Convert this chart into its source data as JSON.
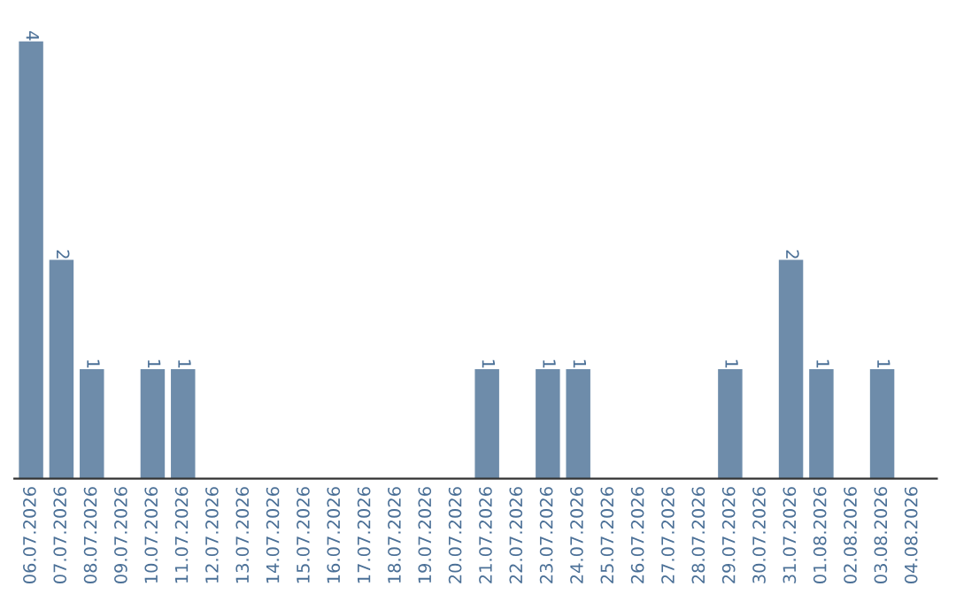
{
  "chart_data": {
    "type": "bar",
    "categories": [
      "06.07.2026",
      "07.07.2026",
      "08.07.2026",
      "09.07.2026",
      "10.07.2026",
      "11.07.2026",
      "12.07.2026",
      "13.07.2026",
      "14.07.2026",
      "15.07.2026",
      "16.07.2026",
      "17.07.2026",
      "18.07.2026",
      "19.07.2026",
      "20.07.2026",
      "21.07.2026",
      "22.07.2026",
      "23.07.2026",
      "24.07.2026",
      "25.07.2026",
      "26.07.2026",
      "27.07.2026",
      "28.07.2026",
      "29.07.2026",
      "30.07.2026",
      "31.07.2026",
      "01.08.2026",
      "02.08.2026",
      "03.08.2026",
      "04.08.2026"
    ],
    "values": [
      4,
      2,
      1,
      0,
      1,
      1,
      0,
      0,
      0,
      0,
      0,
      0,
      0,
      0,
      0,
      1,
      0,
      1,
      1,
      0,
      0,
      0,
      0,
      1,
      0,
      2,
      1,
      0,
      1,
      0
    ],
    "value_labels": [
      "4",
      "2",
      "1",
      null,
      "1",
      "1",
      null,
      null,
      null,
      null,
      null,
      null,
      null,
      null,
      null,
      "1",
      null,
      "1",
      "1",
      null,
      null,
      null,
      null,
      "1",
      null,
      "2",
      "1",
      null,
      "1",
      null
    ],
    "color": "#6e8caa",
    "tick_labels": "x",
    "grid": false,
    "legend": false
  }
}
